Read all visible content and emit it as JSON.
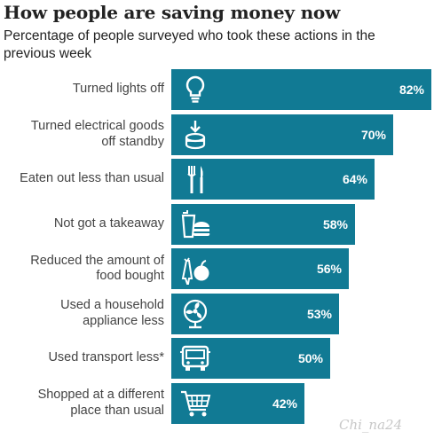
{
  "title": "How people are saving money now",
  "subtitle": "Percentage of people surveyed who took these actions in the previous week",
  "watermark": "Chi_na24",
  "colors": {
    "bar": "#117a94",
    "label": "#444444",
    "value": "#ffffff"
  },
  "chart_data": {
    "type": "bar",
    "orientation": "horizontal",
    "title": "How people are saving money now",
    "subtitle": "Percentage of people surveyed who took these actions in the previous week",
    "xlim": [
      0,
      100
    ],
    "grid": false,
    "categories": [
      [
        "Turned lights off"
      ],
      [
        "Turned electrical goods",
        "off standby"
      ],
      [
        "Eaten out less than usual"
      ],
      [
        "Not got a takeaway"
      ],
      [
        "Reduced the amount of",
        "food bought"
      ],
      [
        "Used a household",
        "appliance less"
      ],
      [
        "Used transport less*"
      ],
      [
        "Shopped at a different",
        "place than usual"
      ]
    ],
    "values": [
      82,
      70,
      64,
      58,
      56,
      53,
      50,
      42
    ],
    "value_labels": [
      "82%",
      "70%",
      "64%",
      "58%",
      "56%",
      "53%",
      "50%",
      "42%"
    ],
    "icons": [
      "lightbulb-icon",
      "standby-power-icon",
      "fork-knife-icon",
      "takeaway-icon",
      "food-icon",
      "fan-icon",
      "bus-icon",
      "shopping-cart-icon"
    ]
  }
}
